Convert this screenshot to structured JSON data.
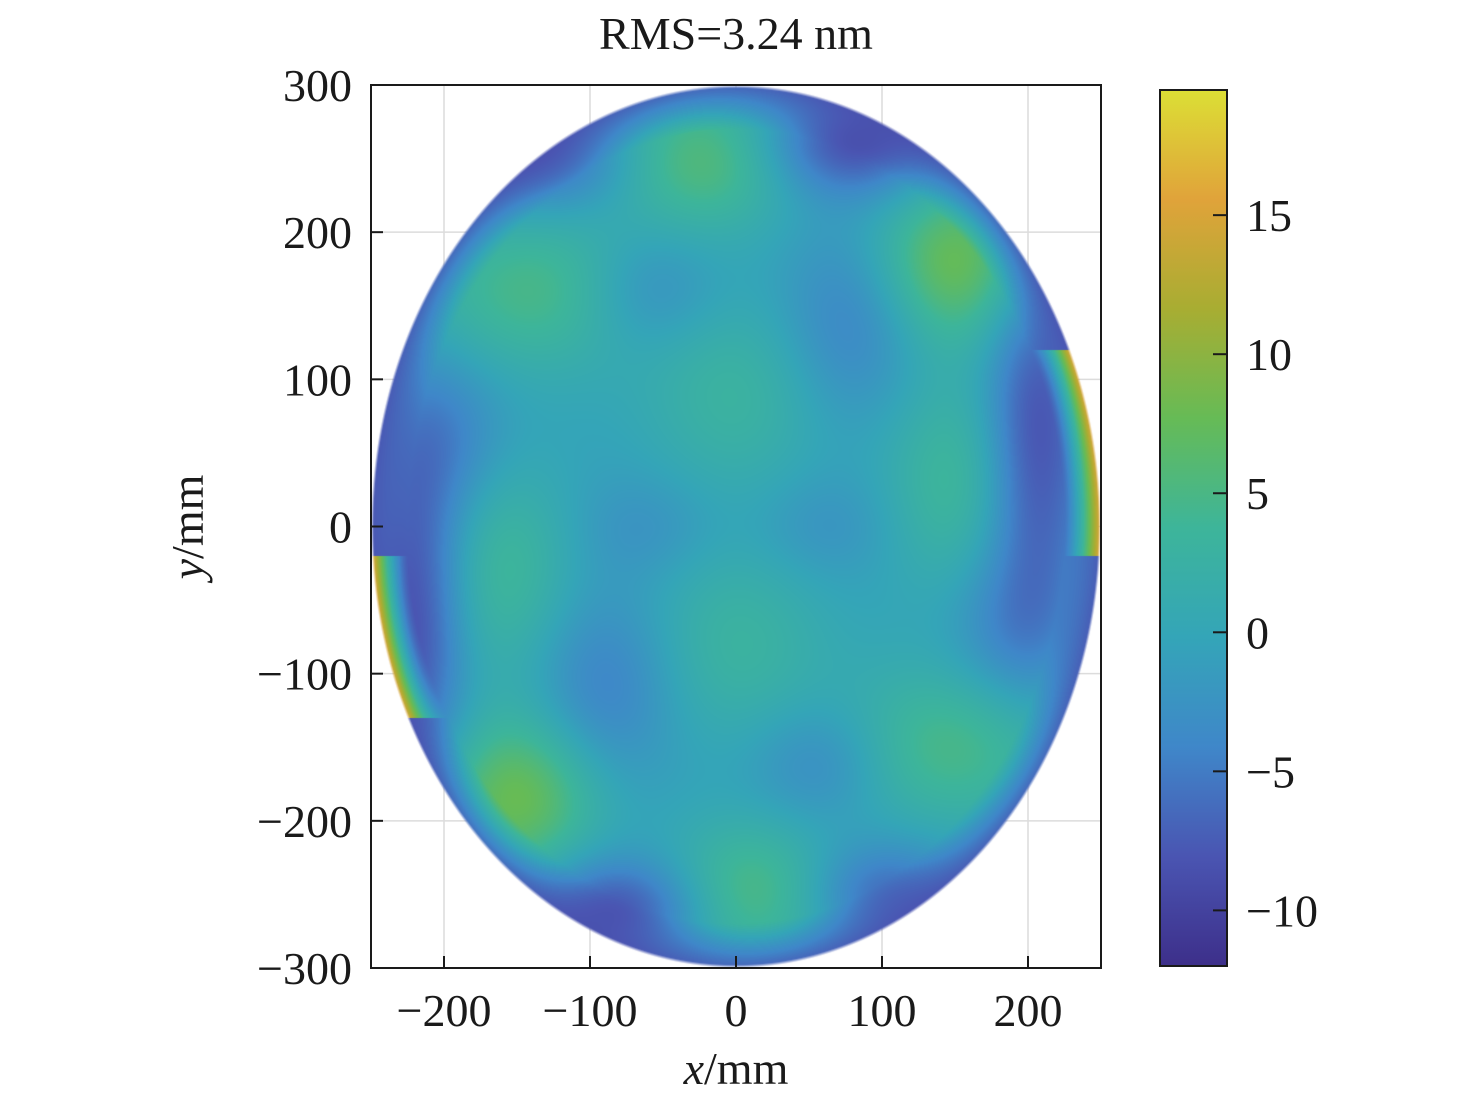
{
  "chart_data": {
    "type": "heatmap",
    "title": "RMS=3.24 nm",
    "xlabel_var": "x",
    "xlabel_unit": "/mm",
    "ylabel_var": "y",
    "ylabel_unit": "/mm",
    "xlim": [
      -250,
      250
    ],
    "ylim": [
      -300,
      300
    ],
    "x_ticks": [
      -200,
      -100,
      0,
      100,
      200
    ],
    "x_tick_labels": [
      "−200",
      "−100",
      "0",
      "100",
      "200"
    ],
    "y_ticks": [
      300,
      200,
      100,
      0,
      -100,
      -200,
      -300
    ],
    "y_tick_labels": [
      "300",
      "200",
      "100",
      "0",
      "−100",
      "−200",
      "−300"
    ],
    "grid": true,
    "aperture": {
      "shape": "ellipse",
      "center": [
        0,
        0
      ],
      "semi_axis_x": 250,
      "semi_axis_y": 300
    },
    "baseline_value": -1,
    "features": [
      {
        "x": 0,
        "y": 90,
        "sigma_x": 45,
        "sigma_y": 50,
        "value": 3
      },
      {
        "x": 0,
        "y": -80,
        "sigma_x": 45,
        "sigma_y": 50,
        "value": 3
      },
      {
        "x": -20,
        "y": 250,
        "sigma_x": 45,
        "sigma_y": 35,
        "value": 6
      },
      {
        "x": 10,
        "y": -250,
        "sigma_x": 45,
        "sigma_y": 35,
        "value": 6
      },
      {
        "x": 150,
        "y": 180,
        "sigma_x": 40,
        "sigma_y": 40,
        "value": 8
      },
      {
        "x": -150,
        "y": -185,
        "sigma_x": 40,
        "sigma_y": 40,
        "value": 8
      },
      {
        "x": -135,
        "y": 160,
        "sigma_x": 60,
        "sigma_y": 40,
        "value": 5
      },
      {
        "x": 145,
        "y": -150,
        "sigma_x": 60,
        "sigma_y": 40,
        "value": 5
      },
      {
        "x": 150,
        "y": 30,
        "sigma_x": 35,
        "sigma_y": 55,
        "value": 4
      },
      {
        "x": -160,
        "y": -30,
        "sigma_x": 35,
        "sigma_y": 55,
        "value": 4
      },
      {
        "x": -60,
        "y": 160,
        "sigma_x": 35,
        "sigma_y": 30,
        "value": -5
      },
      {
        "x": 80,
        "y": 140,
        "sigma_x": 35,
        "sigma_y": 45,
        "value": -5
      },
      {
        "x": -90,
        "y": -110,
        "sigma_x": 35,
        "sigma_y": 45,
        "value": -5
      },
      {
        "x": 60,
        "y": -160,
        "sigma_x": 35,
        "sigma_y": 30,
        "value": -5
      },
      {
        "x": 80,
        "y": 260,
        "sigma_x": 45,
        "sigma_y": 25,
        "value": -9
      },
      {
        "x": -80,
        "y": -260,
        "sigma_x": 45,
        "sigma_y": 25,
        "value": -9
      },
      {
        "x": -130,
        "y": 250,
        "sigma_x": 40,
        "sigma_y": 25,
        "value": -7
      },
      {
        "x": 100,
        "y": -250,
        "sigma_x": 40,
        "sigma_y": 25,
        "value": -7
      },
      {
        "x": 205,
        "y": 60,
        "sigma_x": 25,
        "sigma_y": 90,
        "value": -9
      },
      {
        "x": -220,
        "y": -60,
        "sigma_x": 25,
        "sigma_y": 90,
        "value": -9
      },
      {
        "x": -195,
        "y": 60,
        "sigma_x": 30,
        "sigma_y": 40,
        "value": -4
      },
      {
        "x": 185,
        "y": -70,
        "sigma_x": 30,
        "sigma_y": 40,
        "value": -4
      },
      {
        "x": -60,
        "y": 0,
        "sigma_x": 35,
        "sigma_y": 25,
        "value": -3
      },
      {
        "x": 60,
        "y": 0,
        "sigma_x": 35,
        "sigma_y": 25,
        "value": -3
      }
    ],
    "edge_highlights": [
      {
        "side": "right",
        "y_range": [
          -20,
          120
        ],
        "value": 16
      },
      {
        "side": "left",
        "y_range": [
          -130,
          -20
        ],
        "value": 16
      }
    ],
    "colorbar": {
      "ticks": [
        15,
        10,
        5,
        0,
        -5,
        -10
      ],
      "tick_labels": [
        "15",
        "10",
        "5",
        "0",
        "−5",
        "−10"
      ],
      "range": [
        -12,
        19.5
      ],
      "colormap": [
        "#3d2f8a",
        "#4a55b2",
        "#3f87c9",
        "#34a5b8",
        "#3db59a",
        "#66bb56",
        "#a8ad32",
        "#e0a33a",
        "#dcdf35"
      ]
    }
  }
}
